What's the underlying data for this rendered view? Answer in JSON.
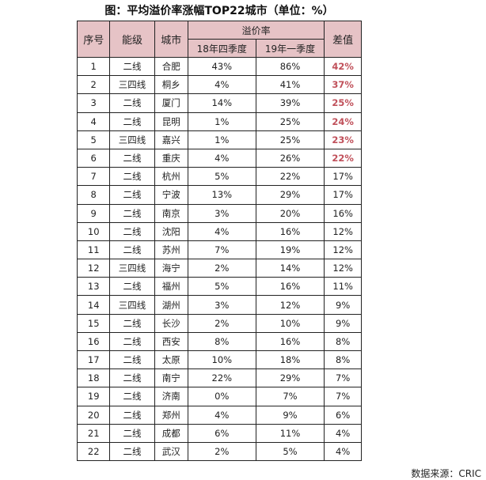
{
  "title": "图：平均溢价率涨幅TOP22城市（单位：%）",
  "headers": {
    "index": "序号",
    "tier": "能级",
    "city": "城市",
    "premium_group": "溢价率",
    "q4_2018": "18年四季度",
    "q1_2019": "19年一季度",
    "diff": "差值"
  },
  "highlight_color": "#c0505a",
  "header_bg": "#e6c3c6",
  "rows": [
    {
      "no": "1",
      "tier": "二线",
      "city": "合肥",
      "q4": "43%",
      "q1": "86%",
      "diff": "42%",
      "hot": true
    },
    {
      "no": "2",
      "tier": "三四线",
      "city": "桐乡",
      "q4": "4%",
      "q1": "41%",
      "diff": "37%",
      "hot": true
    },
    {
      "no": "3",
      "tier": "二线",
      "city": "厦门",
      "q4": "14%",
      "q1": "39%",
      "diff": "25%",
      "hot": true
    },
    {
      "no": "4",
      "tier": "二线",
      "city": "昆明",
      "q4": "1%",
      "q1": "25%",
      "diff": "24%",
      "hot": true
    },
    {
      "no": "5",
      "tier": "三四线",
      "city": "嘉兴",
      "q4": "1%",
      "q1": "25%",
      "diff": "23%",
      "hot": true
    },
    {
      "no": "6",
      "tier": "二线",
      "city": "重庆",
      "q4": "4%",
      "q1": "26%",
      "diff": "22%",
      "hot": true
    },
    {
      "no": "7",
      "tier": "二线",
      "city": "杭州",
      "q4": "5%",
      "q1": "22%",
      "diff": "17%",
      "hot": false
    },
    {
      "no": "8",
      "tier": "二线",
      "city": "宁波",
      "q4": "13%",
      "q1": "29%",
      "diff": "17%",
      "hot": false
    },
    {
      "no": "9",
      "tier": "二线",
      "city": "南京",
      "q4": "3%",
      "q1": "20%",
      "diff": "16%",
      "hot": false
    },
    {
      "no": "10",
      "tier": "二线",
      "city": "沈阳",
      "q4": "4%",
      "q1": "16%",
      "diff": "12%",
      "hot": false
    },
    {
      "no": "11",
      "tier": "二线",
      "city": "苏州",
      "q4": "7%",
      "q1": "19%",
      "diff": "12%",
      "hot": false
    },
    {
      "no": "12",
      "tier": "三四线",
      "city": "海宁",
      "q4": "2%",
      "q1": "14%",
      "diff": "12%",
      "hot": false
    },
    {
      "no": "13",
      "tier": "二线",
      "city": "福州",
      "q4": "5%",
      "q1": "16%",
      "diff": "11%",
      "hot": false
    },
    {
      "no": "14",
      "tier": "三四线",
      "city": "湖州",
      "q4": "3%",
      "q1": "12%",
      "diff": "9%",
      "hot": false
    },
    {
      "no": "15",
      "tier": "二线",
      "city": "长沙",
      "q4": "2%",
      "q1": "10%",
      "diff": "9%",
      "hot": false
    },
    {
      "no": "16",
      "tier": "二线",
      "city": "西安",
      "q4": "8%",
      "q1": "16%",
      "diff": "8%",
      "hot": false
    },
    {
      "no": "17",
      "tier": "二线",
      "city": "太原",
      "q4": "10%",
      "q1": "18%",
      "diff": "8%",
      "hot": false
    },
    {
      "no": "18",
      "tier": "二线",
      "city": "南宁",
      "q4": "22%",
      "q1": "29%",
      "diff": "7%",
      "hot": false
    },
    {
      "no": "19",
      "tier": "二线",
      "city": "济南",
      "q4": "0%",
      "q1": "7%",
      "diff": "7%",
      "hot": false
    },
    {
      "no": "20",
      "tier": "二线",
      "city": "郑州",
      "q4": "4%",
      "q1": "9%",
      "diff": "6%",
      "hot": false
    },
    {
      "no": "21",
      "tier": "二线",
      "city": "成都",
      "q4": "6%",
      "q1": "11%",
      "diff": "4%",
      "hot": false
    },
    {
      "no": "22",
      "tier": "二线",
      "city": "武汉",
      "q4": "2%",
      "q1": "5%",
      "diff": "4%",
      "hot": false
    }
  ],
  "source": "数据来源：CRIC"
}
